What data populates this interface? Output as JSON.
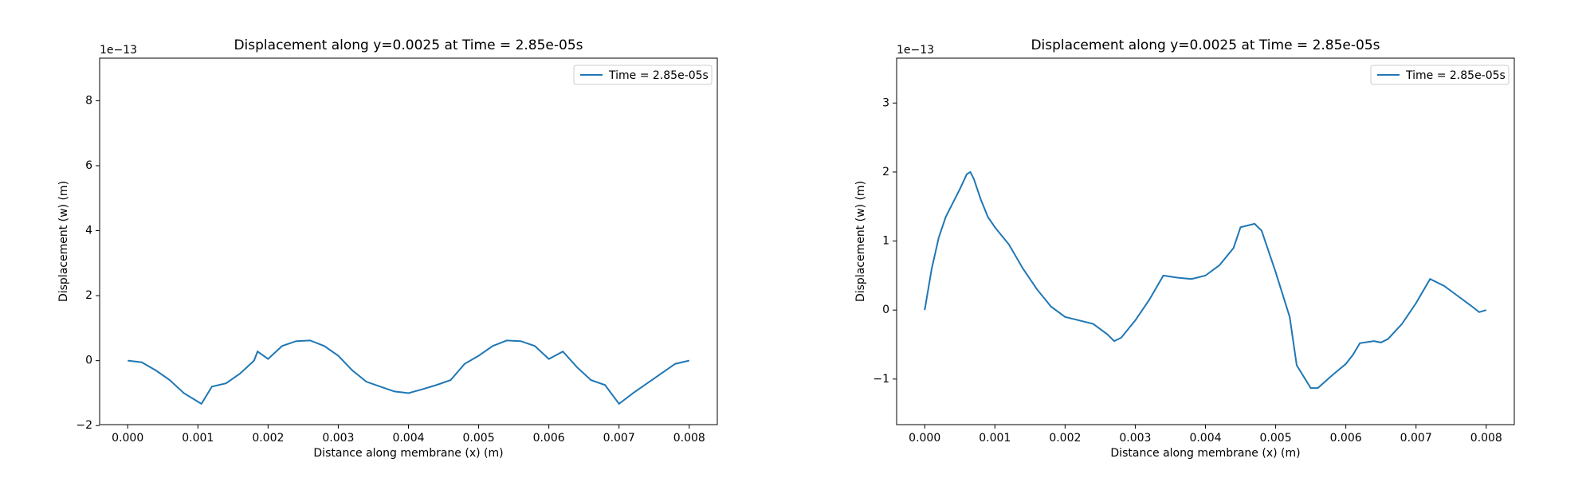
{
  "chart_data": [
    {
      "type": "line",
      "title": "Displacement along y=0.0025 at Time = 2.85e-05s",
      "xlabel": "Distance along membrane (x) (m)",
      "ylabel": "Displacement (w) (m)",
      "y_offset": "1e−13",
      "x": [
        0,
        0.0002,
        0.0004,
        0.0006,
        0.0008,
        0.00105,
        0.0012,
        0.0014,
        0.0016,
        0.0018,
        0.00185,
        0.002,
        0.0022,
        0.0024,
        0.0026,
        0.0028,
        0.003,
        0.0032,
        0.0034,
        0.0036,
        0.0038,
        0.004,
        0.0042,
        0.0044,
        0.0046,
        0.0048,
        0.005,
        0.0052,
        0.0054,
        0.0056,
        0.0058,
        0.006,
        0.0062,
        0.0064,
        0.0066,
        0.0068,
        0.007,
        0.0072,
        0.0074,
        0.0076,
        0.0078,
        0.008
      ],
      "series": [
        {
          "name": "Time = 2.85e-05s",
          "color": "#1f77b4",
          "values": [
            0,
            -0.05,
            -0.3,
            -0.6,
            -1.0,
            -1.33,
            -0.8,
            -0.7,
            -0.4,
            0.0,
            0.28,
            0.05,
            0.45,
            0.6,
            0.62,
            0.45,
            0.15,
            -0.3,
            -0.65,
            -0.8,
            -0.95,
            -1.0,
            -0.88,
            -0.75,
            -0.6,
            -0.1,
            0.15,
            0.45,
            0.62,
            0.6,
            0.45,
            0.05,
            0.28,
            -0.2,
            -0.6,
            -0.75,
            -1.33,
            -1.0,
            -0.7,
            -0.4,
            -0.1,
            0
          ]
        }
      ],
      "xlim": [
        -0.0004,
        0.0084
      ],
      "ylim": [
        -1.97,
        9.31
      ],
      "xticks": [
        {
          "value": 0,
          "label": "0.000"
        },
        {
          "value": 0.001,
          "label": "0.001"
        },
        {
          "value": 0.002,
          "label": "0.002"
        },
        {
          "value": 0.003,
          "label": "0.003"
        },
        {
          "value": 0.004,
          "label": "0.004"
        },
        {
          "value": 0.005,
          "label": "0.005"
        },
        {
          "value": 0.006,
          "label": "0.006"
        },
        {
          "value": 0.007,
          "label": "0.007"
        },
        {
          "value": 0.008,
          "label": "0.008"
        }
      ],
      "yticks": [
        {
          "value": -2,
          "label": "−2"
        },
        0,
        2,
        4,
        6,
        8
      ],
      "legend": "upper right"
    },
    {
      "type": "line",
      "title": "Displacement along y=0.0025 at Time = 2.85e-05s",
      "xlabel": "Distance along membrane (x) (m)",
      "ylabel": "Displacement (w) (m)",
      "y_offset": "1e−13",
      "x": [
        0,
        0.0001,
        0.0002,
        0.0003,
        0.0004,
        0.0005,
        0.0006,
        0.00065,
        0.0007,
        0.0008,
        0.0009,
        0.001,
        0.0012,
        0.0014,
        0.0016,
        0.0018,
        0.002,
        0.0022,
        0.0024,
        0.0026,
        0.0027,
        0.0028,
        0.003,
        0.0032,
        0.0034,
        0.0036,
        0.0038,
        0.004,
        0.0042,
        0.0044,
        0.0045,
        0.0047,
        0.0048,
        0.005,
        0.0052,
        0.0053,
        0.0055,
        0.0056,
        0.0058,
        0.006,
        0.0061,
        0.0062,
        0.0064,
        0.0065,
        0.0066,
        0.0068,
        0.007,
        0.0072,
        0.0074,
        0.0076,
        0.0078,
        0.0079,
        0.008
      ],
      "series": [
        {
          "name": "Time = 2.85e-05s",
          "color": "#1f77b4",
          "values": [
            0,
            0.6,
            1.05,
            1.35,
            1.55,
            1.75,
            1.97,
            2.0,
            1.9,
            1.6,
            1.35,
            1.2,
            0.95,
            0.6,
            0.3,
            0.05,
            -0.1,
            -0.15,
            -0.2,
            -0.35,
            -0.45,
            -0.4,
            -0.15,
            0.15,
            0.5,
            0.47,
            0.45,
            0.5,
            0.65,
            0.9,
            1.2,
            1.25,
            1.15,
            0.55,
            -0.1,
            -0.8,
            -1.13,
            -1.13,
            -0.95,
            -0.78,
            -0.65,
            -0.48,
            -0.45,
            -0.47,
            -0.42,
            -0.2,
            0.1,
            0.45,
            0.35,
            0.2,
            0.05,
            -0.03,
            0
          ]
        }
      ],
      "xlim": [
        -0.0004,
        0.0084
      ],
      "ylim": [
        -1.66,
        3.65
      ],
      "xticks": [
        {
          "value": 0,
          "label": "0.000"
        },
        {
          "value": 0.001,
          "label": "0.001"
        },
        {
          "value": 0.002,
          "label": "0.002"
        },
        {
          "value": 0.003,
          "label": "0.003"
        },
        {
          "value": 0.004,
          "label": "0.004"
        },
        {
          "value": 0.005,
          "label": "0.005"
        },
        {
          "value": 0.006,
          "label": "0.006"
        },
        {
          "value": 0.007,
          "label": "0.007"
        },
        {
          "value": 0.008,
          "label": "0.008"
        }
      ],
      "yticks": [
        {
          "value": -1,
          "label": "−1"
        },
        0,
        1,
        2,
        3
      ],
      "legend": "upper right"
    }
  ]
}
